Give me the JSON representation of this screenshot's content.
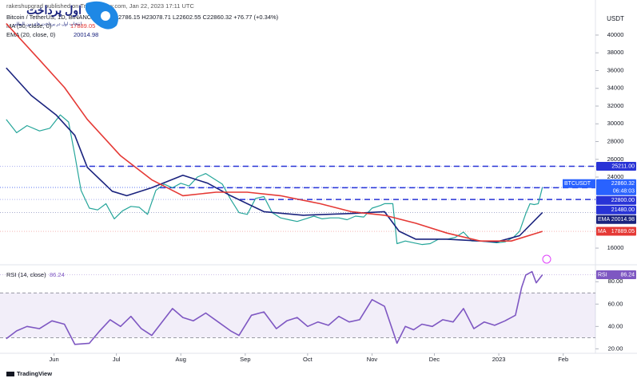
{
  "header": {
    "publisher": "rakeshupgrad published on TradingView.com, Jan 22, 2023 17:11 UTC",
    "brand": "TradingView",
    "logo_title": "اول پرداخت",
    "logo_subtitle": "انتخاب اول در پرداخت های بین المللی"
  },
  "chart_data": [
    {
      "type": "line",
      "title": "Bitcoin / TetherUS, 1D, BINANCE",
      "ohlc": "O22786.15 H23078.71 L22602.55 C22860.32 +76.77 (+0.34%)",
      "currency": "USDT",
      "xlim": [
        -3,
        283.5
      ],
      "ylim": [
        14300,
        43950
      ],
      "yticks": [
        16000,
        24000,
        26000,
        28000,
        30000,
        32000,
        34000,
        36000,
        38000,
        40000
      ],
      "hlines": [
        {
          "value": 25211,
          "label": "25211.00"
        },
        {
          "value": 22800,
          "label": "22800.00"
        },
        {
          "value": 21480,
          "label": "21480.00"
        }
      ],
      "price_tag": {
        "symbol": "BTCUSDT",
        "countdown": "06:48:03"
      },
      "series": [
        {
          "name": "BTCUSDT",
          "color": "#26a69a",
          "last": 22860.32,
          "x": [
            0,
            5,
            10,
            16,
            21,
            26,
            30,
            33,
            36,
            40,
            44,
            48,
            52,
            56,
            60,
            64,
            68,
            72,
            76,
            80,
            84,
            88,
            92,
            96,
            100,
            104,
            108,
            112,
            116,
            120,
            124,
            128,
            132,
            136,
            140,
            144,
            148,
            152,
            156,
            160,
            164,
            168,
            172,
            176,
            180,
            182,
            186,
            188,
            192,
            196,
            200,
            204,
            208,
            212,
            216,
            220,
            224,
            228,
            232,
            236,
            240,
            244,
            247,
            250,
            252,
            254,
            256,
            258
          ],
          "values": [
            30500,
            29000,
            29800,
            29200,
            29500,
            31000,
            30200,
            26500,
            22500,
            20500,
            20300,
            21000,
            19300,
            20200,
            20700,
            20600,
            19800,
            22500,
            23200,
            22800,
            23300,
            23000,
            24000,
            24400,
            23800,
            23200,
            21500,
            20000,
            19800,
            21600,
            21800,
            20000,
            19400,
            19200,
            19000,
            19300,
            19600,
            19300,
            19400,
            19400,
            19200,
            19600,
            19500,
            20500,
            20800,
            21000,
            21000,
            16500,
            16800,
            16600,
            16400,
            16500,
            17000,
            17000,
            17200,
            17800,
            16800,
            16800,
            16700,
            16600,
            16700,
            17200,
            17900,
            19900,
            21000,
            20900,
            21000,
            22860.32
          ]
        },
        {
          "name": "EMA",
          "label": "EMA (20, close, 0)",
          "color": "#1a237e",
          "last": 20014.98,
          "x": [
            0,
            12,
            24,
            33,
            39,
            51,
            58,
            70,
            85,
            97,
            108,
            124,
            143,
            166,
            182,
            189,
            197,
            212,
            236,
            247,
            258
          ],
          "values": [
            36300,
            33200,
            31000,
            28700,
            25100,
            22400,
            21900,
            22800,
            24200,
            23300,
            21900,
            20100,
            19700,
            19900,
            20100,
            17900,
            17000,
            17000,
            16700,
            17400,
            20014.98
          ]
        },
        {
          "name": "MA",
          "label": "MA (50, close, 0)",
          "color": "#e53935",
          "last": 17889.05,
          "x": [
            0,
            16,
            28,
            39,
            55,
            70,
            85,
            101,
            116,
            132,
            151,
            166,
            182,
            197,
            212,
            228,
            243,
            258
          ],
          "values": [
            41300,
            37200,
            34100,
            30500,
            26400,
            23700,
            21900,
            22300,
            22300,
            21900,
            21000,
            20100,
            19700,
            18800,
            17700,
            16800,
            16800,
            17889.05
          ]
        }
      ]
    },
    {
      "type": "line",
      "title": "RSI (14, close)",
      "xlim": [
        -3,
        283.5
      ],
      "ylim": [
        16,
        93
      ],
      "xticks": [
        {
          "value": 23,
          "label": "Jun"
        },
        {
          "value": 53,
          "label": "Jul"
        },
        {
          "value": 84,
          "label": "Aug"
        },
        {
          "value": 115,
          "label": "Sep"
        },
        {
          "value": 145,
          "label": "Oct"
        },
        {
          "value": 176,
          "label": "Nov"
        },
        {
          "value": 206,
          "label": "Dec"
        },
        {
          "value": 237,
          "label": "2023"
        },
        {
          "value": 268,
          "label": "Feb"
        }
      ],
      "yticks": [
        {
          "value": 20,
          "label": "20.00"
        },
        {
          "value": 40,
          "label": "40.00"
        },
        {
          "value": 60,
          "label": "60.00"
        },
        {
          "value": 80,
          "label": "80.00"
        }
      ],
      "band": [
        30,
        70
      ],
      "series": [
        {
          "name": "RSI",
          "color": "#7e57c2",
          "last": 86.24,
          "x": [
            0,
            5,
            10,
            16,
            22,
            28,
            33,
            40,
            45,
            50,
            55,
            60,
            65,
            70,
            75,
            80,
            85,
            90,
            96,
            102,
            108,
            112,
            118,
            124,
            130,
            135,
            140,
            145,
            150,
            155,
            160,
            165,
            170,
            176,
            182,
            188,
            192,
            196,
            200,
            205,
            210,
            215,
            220,
            225,
            230,
            235,
            240,
            245,
            248,
            250,
            253,
            255,
            258
          ],
          "values": [
            29,
            36,
            40,
            38,
            45,
            42,
            24,
            25,
            36,
            46,
            40,
            49,
            38,
            32,
            44,
            56,
            48,
            45,
            52,
            44,
            36,
            32,
            50,
            53,
            38,
            45,
            48,
            40,
            44,
            41,
            49,
            44,
            46,
            64,
            58,
            25,
            40,
            37,
            42,
            40,
            46,
            44,
            56,
            38,
            44,
            41,
            45,
            50,
            75,
            86,
            89,
            79,
            86.24
          ]
        }
      ]
    }
  ]
}
